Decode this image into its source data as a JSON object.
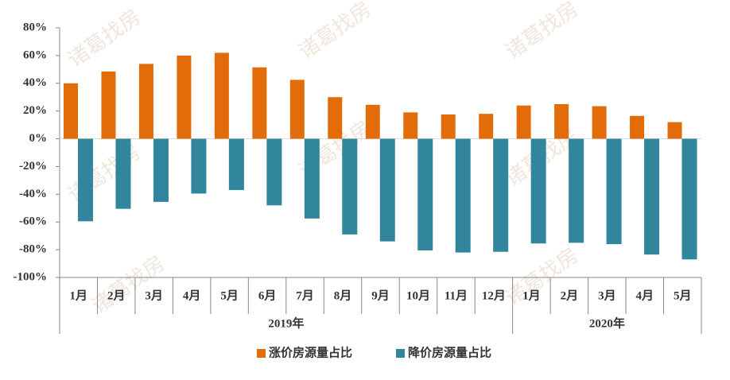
{
  "chart_data": {
    "type": "bar",
    "categories": [
      "1月",
      "2月",
      "3月",
      "4月",
      "5月",
      "6月",
      "7月",
      "8月",
      "9月",
      "10月",
      "11月",
      "12月",
      "1月",
      "2月",
      "3月",
      "4月",
      "5月"
    ],
    "x_groups": [
      "2019年",
      "2020年"
    ],
    "series": [
      {
        "name": "涨价房源量占比",
        "color": "#e36c0a",
        "values": [
          40,
          48.5,
          54,
          60,
          62,
          51.5,
          42.5,
          30,
          24.5,
          19,
          17.5,
          18,
          24,
          25,
          23.5,
          16.5,
          12
        ]
      },
      {
        "name": "降价房源量占比",
        "color": "#31859c",
        "values": [
          -59.5,
          -50.5,
          -45.5,
          -39.5,
          -37,
          -48,
          -57.5,
          -69,
          -74,
          -80.5,
          -82,
          -81.5,
          -75.5,
          -75,
          -76,
          -83.5,
          -87
        ]
      }
    ],
    "ylim": [
      -100,
      80
    ],
    "yticks": [
      {
        "value": -100,
        "label": "-100%"
      },
      {
        "value": -80,
        "label": "-80%"
      },
      {
        "value": -60,
        "label": "-60%"
      },
      {
        "value": -40,
        "label": "-40%"
      },
      {
        "value": -20,
        "label": "-20%"
      },
      {
        "value": 0,
        "label": "0%"
      },
      {
        "value": 20,
        "label": "20%"
      },
      {
        "value": 40,
        "label": "40%"
      },
      {
        "value": 60,
        "label": "60%"
      },
      {
        "value": 80,
        "label": "80%"
      }
    ],
    "watermark": "诸葛找房",
    "legend": "bottom"
  }
}
